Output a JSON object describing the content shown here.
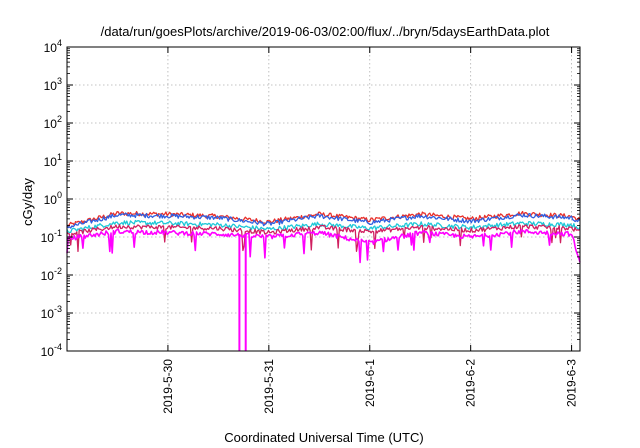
{
  "chart_data": {
    "type": "line",
    "title": "/data/run/goesPlots/archive/2019-06-03/02:00/flux/../bryn/5daysEarthData.plot",
    "xlabel": "Coordinated Universal Time (UTC)",
    "ylabel": "cGy/day",
    "yscale": "log",
    "ylim": [
      0.0001,
      10000
    ],
    "xlim": [
      "2019-05-29T00:00",
      "2019-06-03T02:00"
    ],
    "y_ticks": [
      {
        "base": "10",
        "exp": "-4",
        "value": 0.0001
      },
      {
        "base": "10",
        "exp": "-3",
        "value": 0.001
      },
      {
        "base": "10",
        "exp": "-2",
        "value": 0.01
      },
      {
        "base": "10",
        "exp": "-1",
        "value": 0.1
      },
      {
        "base": "10",
        "exp": "0",
        "value": 1
      },
      {
        "base": "10",
        "exp": "1",
        "value": 10
      },
      {
        "base": "10",
        "exp": "2",
        "value": 100
      },
      {
        "base": "10",
        "exp": "3",
        "value": 1000
      },
      {
        "base": "10",
        "exp": "4",
        "value": 10000
      }
    ],
    "x_ticks": [
      {
        "label": "2019-5-30",
        "value": "2019-05-30T00:00"
      },
      {
        "label": "2019-5-31",
        "value": "2019-05-31T00:00"
      },
      {
        "label": "2019-6-1",
        "value": "2019-06-01T00:00"
      },
      {
        "label": "2019-6-2",
        "value": "2019-06-02T00:00"
      },
      {
        "label": "2019-6-3",
        "value": "2019-06-03T00:00"
      }
    ],
    "grid": true,
    "legend": "none",
    "series": [
      {
        "color": "#e8302a",
        "x": [
          "2019-05-29T00:00",
          "2019-05-29T12:00",
          "2019-05-30T00:00",
          "2019-05-30T12:00",
          "2019-05-31T00:00",
          "2019-05-31T12:00",
          "2019-06-01T00:00",
          "2019-06-01T12:00",
          "2019-06-02T00:00",
          "2019-06-02T12:00",
          "2019-06-03T00:00",
          "2019-06-03T02:00"
        ],
        "y": [
          0.2,
          0.42,
          0.4,
          0.35,
          0.25,
          0.4,
          0.28,
          0.4,
          0.3,
          0.42,
          0.35,
          0.28
        ]
      },
      {
        "color": "#2f5fe0",
        "x": [
          "2019-05-29T00:00",
          "2019-05-29T12:00",
          "2019-05-30T00:00",
          "2019-05-30T12:00",
          "2019-05-31T00:00",
          "2019-05-31T12:00",
          "2019-06-01T00:00",
          "2019-06-01T12:00",
          "2019-06-02T00:00",
          "2019-06-02T12:00",
          "2019-06-03T00:00",
          "2019-06-03T02:00"
        ],
        "y": [
          0.18,
          0.38,
          0.36,
          0.32,
          0.22,
          0.36,
          0.24,
          0.36,
          0.26,
          0.38,
          0.32,
          0.25
        ]
      },
      {
        "color": "#1ec8d8",
        "x": [
          "2019-05-29T00:00",
          "2019-05-29T12:00",
          "2019-05-30T00:00",
          "2019-05-30T12:00",
          "2019-05-31T00:00",
          "2019-05-31T12:00",
          "2019-06-01T00:00",
          "2019-06-01T12:00",
          "2019-06-02T00:00",
          "2019-06-02T12:00",
          "2019-06-03T00:00",
          "2019-06-03T02:00"
        ],
        "y": [
          0.14,
          0.24,
          0.23,
          0.21,
          0.16,
          0.22,
          0.17,
          0.22,
          0.18,
          0.23,
          0.21,
          0.17
        ]
      },
      {
        "color": "#d02060",
        "x": [
          "2019-05-29T00:00",
          "2019-05-29T12:00",
          "2019-05-30T00:00",
          "2019-05-30T12:00",
          "2019-05-31T00:00",
          "2019-05-31T12:00",
          "2019-06-01T00:00",
          "2019-06-01T12:00",
          "2019-06-02T00:00",
          "2019-06-02T12:00",
          "2019-06-03T00:00",
          "2019-06-03T02:00"
        ],
        "y": [
          0.12,
          0.19,
          0.18,
          0.17,
          0.13,
          0.18,
          0.14,
          0.18,
          0.15,
          0.19,
          0.17,
          0.14
        ]
      },
      {
        "color": "#ff00ff",
        "x": [
          "2019-05-29T00:00",
          "2019-05-29T12:00",
          "2019-05-30T00:00",
          "2019-05-30T12:00",
          "2019-05-31T00:00",
          "2019-05-31T12:00",
          "2019-06-01T00:00",
          "2019-06-01T12:00",
          "2019-06-02T00:00",
          "2019-06-02T12:00",
          "2019-06-03T00:00",
          "2019-06-03T02:00"
        ],
        "y": [
          0.09,
          0.14,
          0.13,
          0.12,
          0.1,
          0.13,
          0.07,
          0.13,
          0.1,
          0.14,
          0.12,
          0.02
        ]
      }
    ],
    "annotations": [
      {
        "type": "dropout",
        "color": "#ff00ff",
        "x": [
          "2019-05-30T17:00",
          "2019-05-30T18:30"
        ],
        "y": 0.0001
      }
    ]
  }
}
